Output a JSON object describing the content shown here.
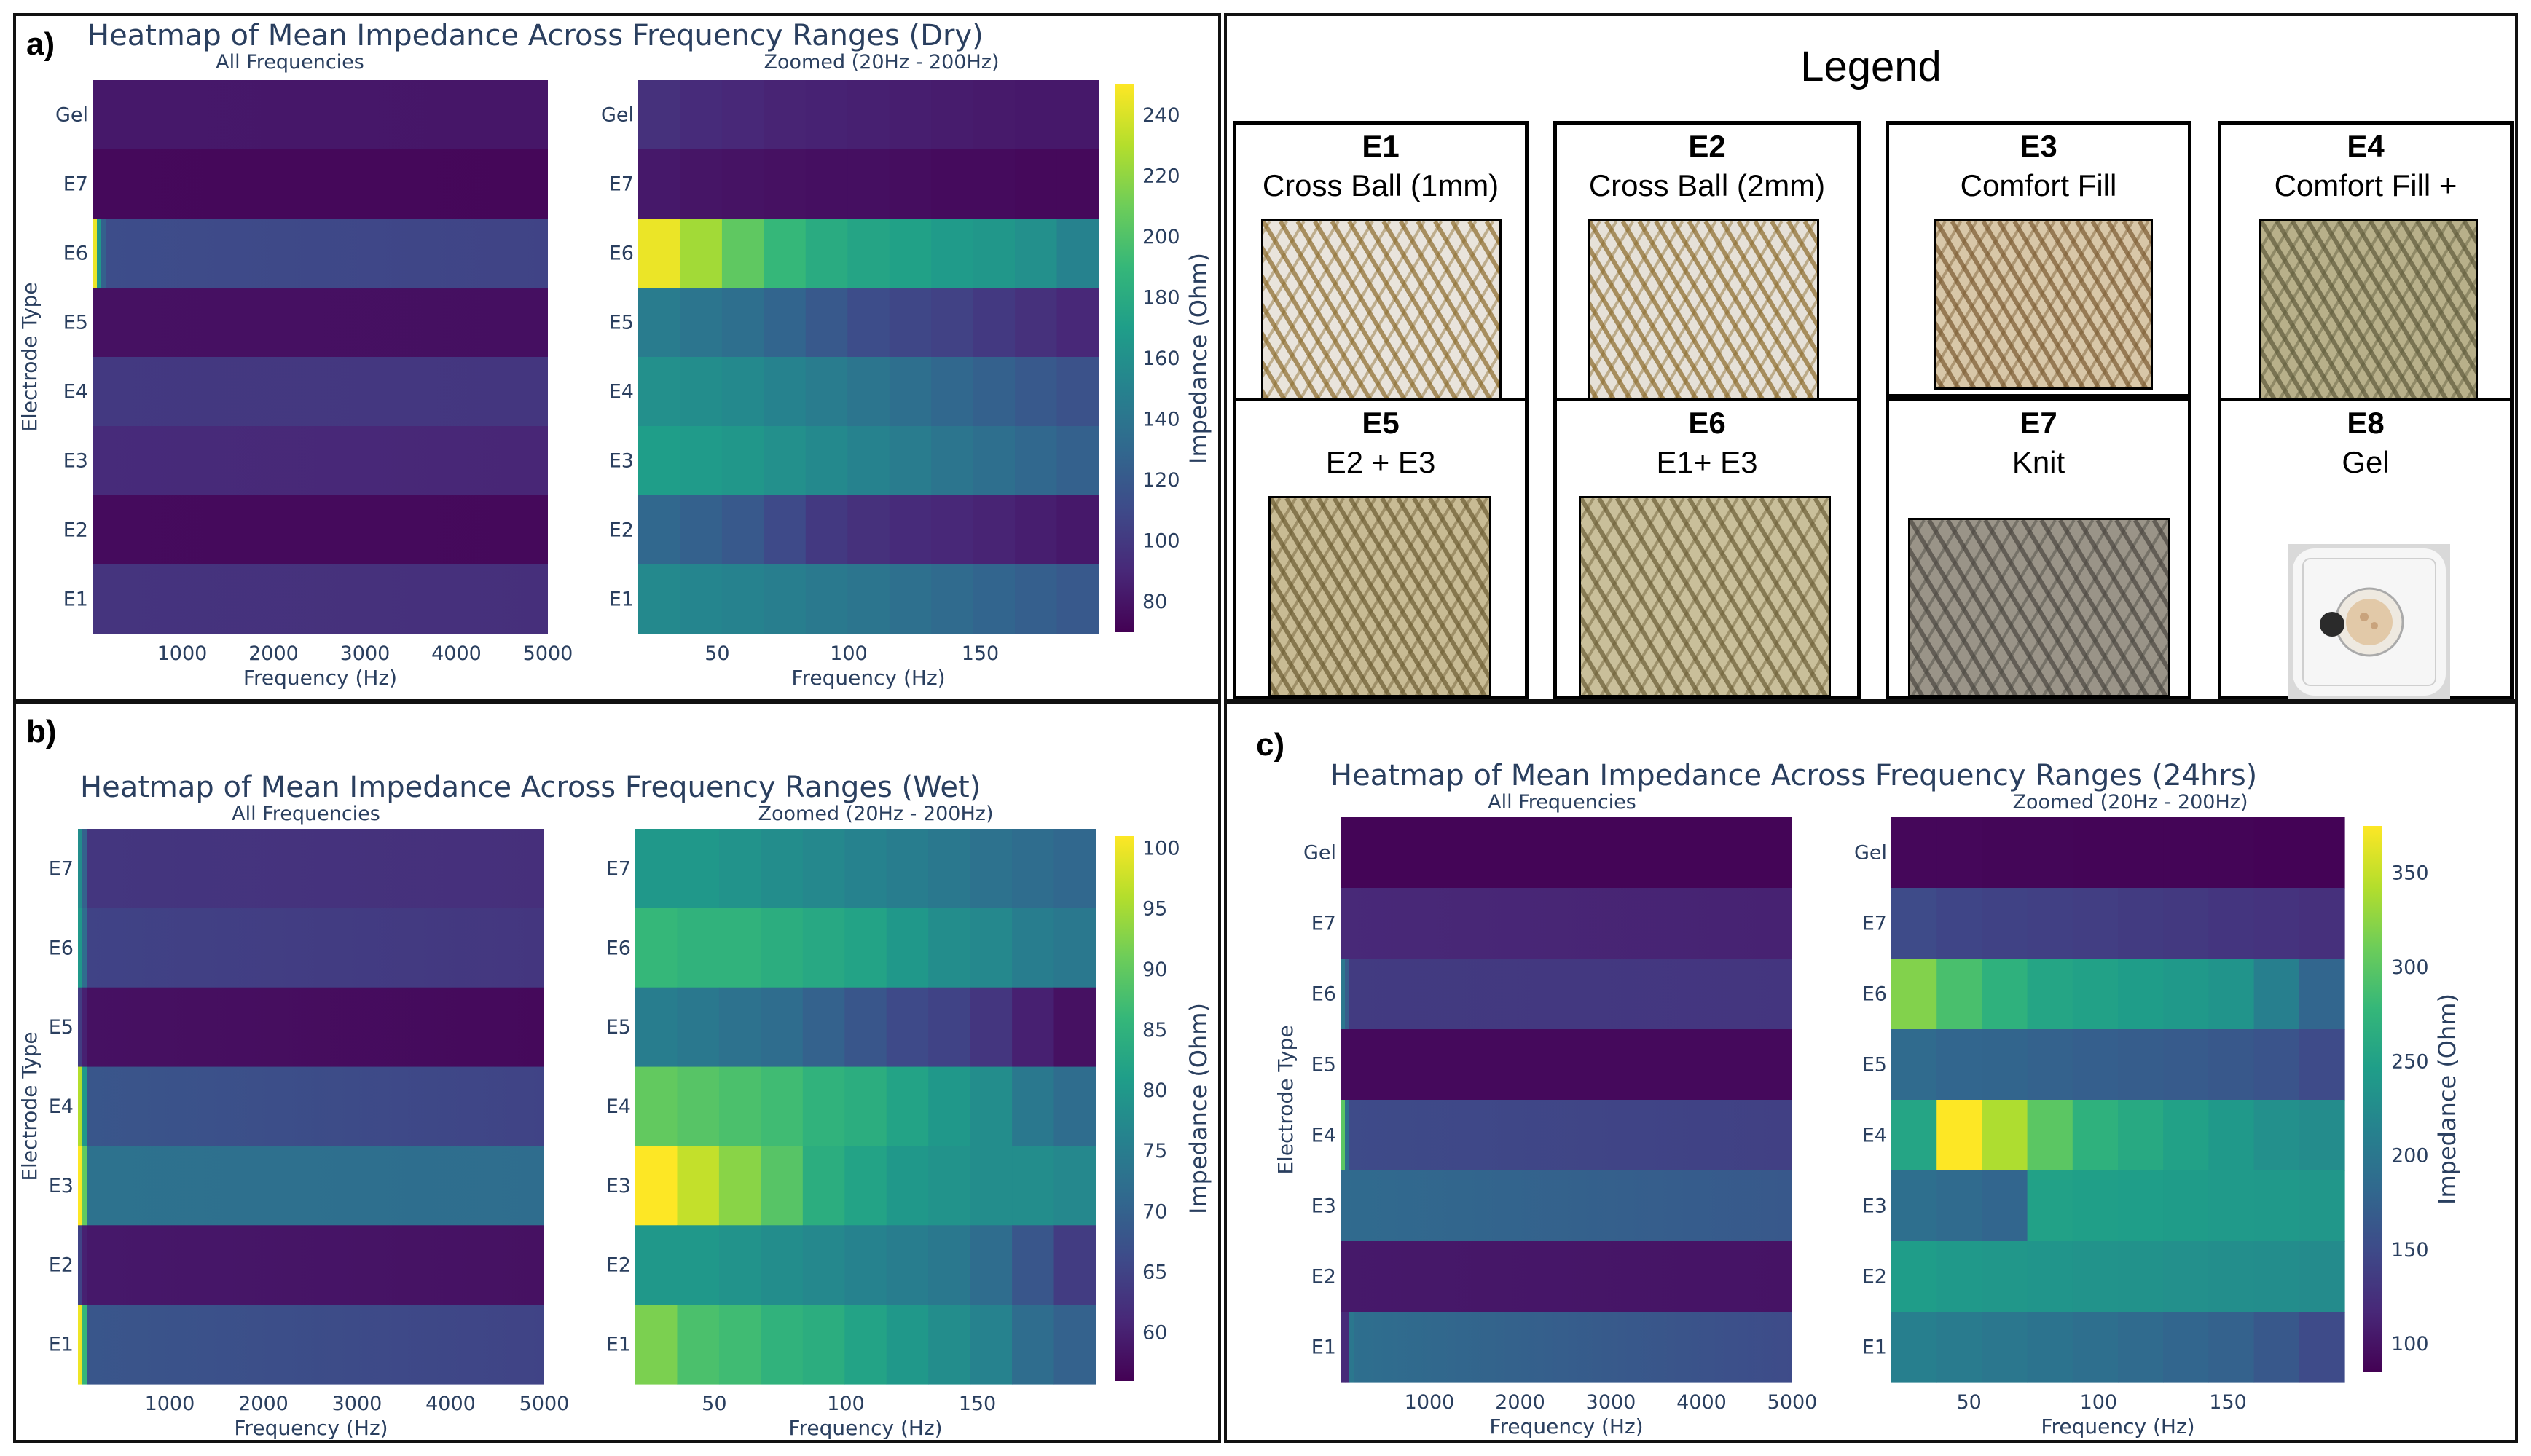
{
  "panels": {
    "a": {
      "label": "a)",
      "title": "Heatmap of Mean Impedance Across Frequency Ranges (Dry)"
    },
    "b": {
      "label": "b)",
      "title": "Heatmap of Mean Impedance Across Frequency Ranges (Wet)"
    },
    "c": {
      "label": "c)",
      "title": "Heatmap of Mean Impedance Across Frequency Ranges (24hrs)"
    }
  },
  "legend": {
    "title": "Legend",
    "cards": [
      {
        "id": "E1",
        "name": "Cross Ball (1mm)",
        "photo": "cross-ball-photo",
        "base": "#e9e4dc",
        "thread": "#8a6a2a"
      },
      {
        "id": "E2",
        "name": "Cross Ball (2mm)",
        "photo": "cross-ball-photo",
        "base": "#e6e1d8",
        "thread": "#8a6a2a"
      },
      {
        "id": "E3",
        "name": "Comfort Fill",
        "photo": "comfort-fill-photo",
        "base": "#d8c7a8",
        "thread": "#7a5a30"
      },
      {
        "id": "E4",
        "name": "Comfort Fill +",
        "photo": "comfort-fill-plus-photo",
        "base": "#b8b08a",
        "thread": "#5e5a3a"
      },
      {
        "id": "E5",
        "name": "E2 + E3",
        "photo": "e2-e3-photo",
        "base": "#c8bb94",
        "thread": "#6a5a30"
      },
      {
        "id": "E6",
        "name": "E1+ E3",
        "photo": "e1-e3-photo",
        "base": "#c9bf9a",
        "thread": "#6a5c34"
      },
      {
        "id": "E7",
        "name": "Knit",
        "photo": "knit-photo",
        "base": "#9a9488",
        "thread": "#4a4640"
      },
      {
        "id": "E8",
        "name": "Gel",
        "photo": "gel-photo",
        "base": "#eeeeee",
        "thread": "#999999"
      }
    ]
  },
  "chart_data": [
    {
      "type": "heatmap",
      "id": "a-all",
      "panel": "a",
      "subtitle": "All Frequencies",
      "xlabel": "Frequency (Hz)",
      "ylabel": "Electrode Type",
      "categories": [
        "Gel",
        "E7",
        "E6",
        "E5",
        "E4",
        "E3",
        "E2",
        "E1"
      ],
      "xlim": [
        20,
        5000
      ],
      "xticks": [
        1000,
        2000,
        3000,
        4000,
        5000
      ],
      "colorscale": "viridis",
      "zmin": 70,
      "zmax": 250,
      "colorbar": false,
      "rows": [
        {
          "label": "Gel",
          "first": [],
          "rest": [
            82,
            81
          ]
        },
        {
          "label": "E7",
          "first": [],
          "rest": [
            74,
            73
          ]
        },
        {
          "label": "E6",
          "first": [
            245,
            165,
            125
          ],
          "rest": [
            112,
            106
          ]
        },
        {
          "label": "E5",
          "first": [],
          "rest": [
            78,
            77
          ]
        },
        {
          "label": "E4",
          "first": [],
          "rest": [
            100,
            98
          ]
        },
        {
          "label": "E3",
          "first": [],
          "rest": [
            92,
            89
          ]
        },
        {
          "label": "E2",
          "first": [],
          "rest": [
            75,
            74
          ]
        },
        {
          "label": "E1",
          "first": [],
          "rest": [
            97,
            94
          ]
        }
      ]
    },
    {
      "type": "heatmap",
      "id": "a-zoom",
      "panel": "a",
      "subtitle": "Zoomed (20Hz - 200Hz)",
      "xlabel": "Frequency (Hz)",
      "categories": [
        "Gel",
        "E7",
        "E6",
        "E5",
        "E4",
        "E3",
        "E2",
        "E1"
      ],
      "xlim": [
        20,
        195
      ],
      "xticks": [
        50,
        100,
        150
      ],
      "colorscale": "viridis",
      "zmin": 70,
      "zmax": 250,
      "colorbar": true,
      "colorbar_title": "Impedance (Ohm)",
      "colorbar_ticks": [
        80,
        100,
        120,
        140,
        160,
        180,
        200,
        220,
        240
      ],
      "rows": [
        {
          "label": "Gel",
          "values": [
            95,
            92,
            90,
            88,
            87,
            86,
            85,
            84,
            83,
            82,
            82
          ]
        },
        {
          "label": "E7",
          "values": [
            82,
            80,
            79,
            78,
            77,
            77,
            76,
            75,
            75,
            74,
            74
          ]
        },
        {
          "label": "E6",
          "values": [
            245,
            225,
            205,
            190,
            180,
            175,
            172,
            168,
            165,
            160,
            150
          ]
        },
        {
          "label": "E5",
          "values": [
            145,
            140,
            135,
            128,
            120,
            112,
            108,
            105,
            100,
            95,
            90
          ]
        },
        {
          "label": "E4",
          "values": [
            160,
            158,
            155,
            150,
            145,
            140,
            135,
            130,
            125,
            120,
            115
          ]
        },
        {
          "label": "E3",
          "values": [
            170,
            168,
            165,
            160,
            155,
            150,
            145,
            140,
            135,
            130,
            125
          ]
        },
        {
          "label": "E2",
          "values": [
            130,
            125,
            120,
            110,
            100,
            95,
            92,
            90,
            88,
            85,
            82
          ]
        },
        {
          "label": "E1",
          "values": [
            155,
            152,
            150,
            147,
            143,
            140,
            136,
            132,
            128,
            124,
            120
          ]
        }
      ]
    },
    {
      "type": "heatmap",
      "id": "b-all",
      "panel": "b",
      "subtitle": "All Frequencies",
      "xlabel": "Frequency (Hz)",
      "ylabel": "Electrode Type",
      "categories": [
        "E7",
        "E6",
        "E5",
        "E4",
        "E3",
        "E2",
        "E1"
      ],
      "xlim": [
        20,
        5000
      ],
      "xticks": [
        1000,
        2000,
        3000,
        4000,
        5000
      ],
      "colorscale": "viridis",
      "zmin": 56,
      "zmax": 101,
      "colorbar": false,
      "rows": [
        {
          "label": "E7",
          "first": [
            78,
            70
          ],
          "rest": [
            63,
            62
          ]
        },
        {
          "label": "E6",
          "first": [
            80,
            72
          ],
          "rest": [
            65,
            63
          ]
        },
        {
          "label": "E5",
          "first": [
            64,
            60
          ],
          "rest": [
            58,
            57
          ]
        },
        {
          "label": "E4",
          "first": [
            96,
            80
          ],
          "rest": [
            68,
            65
          ]
        },
        {
          "label": "E3",
          "first": [
            101,
            90
          ],
          "rest": [
            73,
            72
          ]
        },
        {
          "label": "E2",
          "first": [
            65,
            60
          ],
          "rest": [
            59,
            58
          ]
        },
        {
          "label": "E1",
          "first": [
            100,
            86
          ],
          "rest": [
            68,
            65
          ]
        }
      ]
    },
    {
      "type": "heatmap",
      "id": "b-zoom",
      "panel": "b",
      "subtitle": "Zoomed (20Hz - 200Hz)",
      "xlabel": "Frequency (Hz)",
      "categories": [
        "E7",
        "E6",
        "E5",
        "E4",
        "E3",
        "E2",
        "E1"
      ],
      "xlim": [
        20,
        195
      ],
      "xticks": [
        50,
        100,
        150
      ],
      "colorscale": "viridis",
      "zmin": 56,
      "zmax": 101,
      "colorbar": true,
      "colorbar_title": "Impedance (Ohm)",
      "colorbar_ticks": [
        60,
        65,
        70,
        75,
        80,
        85,
        90,
        95,
        100
      ],
      "rows": [
        {
          "label": "E7",
          "values": [
            80,
            80,
            79,
            78,
            77,
            76,
            75,
            74,
            73,
            72,
            71
          ]
        },
        {
          "label": "E6",
          "values": [
            86,
            85,
            85,
            84,
            83,
            82,
            80,
            78,
            77,
            75,
            74
          ]
        },
        {
          "label": "E5",
          "values": [
            75,
            74,
            73,
            72,
            70,
            68,
            66,
            65,
            63,
            60,
            58
          ]
        },
        {
          "label": "E4",
          "values": [
            90,
            89,
            88,
            87,
            85,
            84,
            82,
            80,
            78,
            74,
            72
          ]
        },
        {
          "label": "E3",
          "values": [
            101,
            97,
            93,
            89,
            84,
            82,
            80,
            79,
            78,
            78,
            77
          ]
        },
        {
          "label": "E2",
          "values": [
            80,
            80,
            79,
            78,
            77,
            76,
            75,
            74,
            72,
            68,
            64
          ]
        },
        {
          "label": "E1",
          "values": [
            92,
            88,
            87,
            85,
            84,
            82,
            80,
            78,
            76,
            72,
            70
          ]
        }
      ]
    },
    {
      "type": "heatmap",
      "id": "c-all",
      "panel": "c",
      "subtitle": "All Frequencies",
      "xlabel": "Frequency (Hz)",
      "ylabel": "Electrode Type",
      "categories": [
        "Gel",
        "E7",
        "E6",
        "E5",
        "E4",
        "E3",
        "E2",
        "E1"
      ],
      "xlim": [
        20,
        5000
      ],
      "xticks": [
        1000,
        2000,
        3000,
        4000,
        5000
      ],
      "colorscale": "viridis",
      "zmin": 85,
      "zmax": 375,
      "colorbar": false,
      "rows": [
        {
          "label": "Gel",
          "first": [],
          "rest": [
            88,
            88
          ]
        },
        {
          "label": "E7",
          "first": [],
          "rest": [
            118,
            112
          ]
        },
        {
          "label": "E6",
          "first": [
            200,
            170
          ],
          "rest": [
            135,
            130
          ]
        },
        {
          "label": "E5",
          "first": [],
          "rest": [
            92,
            92
          ]
        },
        {
          "label": "E4",
          "first": [
            300,
            190
          ],
          "rest": [
            150,
            140
          ]
        },
        {
          "label": "E3",
          "first": [],
          "rest": [
            185,
            165
          ]
        },
        {
          "label": "E2",
          "first": [],
          "rest": [
            105,
            100
          ]
        },
        {
          "label": "E1",
          "first": [
            120,
            120,
            200
          ],
          "rest": [
            190,
            150
          ]
        }
      ]
    },
    {
      "type": "heatmap",
      "id": "c-zoom",
      "panel": "c",
      "subtitle": "Zoomed (20Hz - 200Hz)",
      "xlabel": "Frequency (Hz)",
      "categories": [
        "Gel",
        "E7",
        "E6",
        "E5",
        "E4",
        "E3",
        "E2",
        "E1"
      ],
      "xlim": [
        20,
        195
      ],
      "xticks": [
        50,
        100,
        150
      ],
      "colorscale": "viridis",
      "zmin": 85,
      "zmax": 375,
      "colorbar": true,
      "colorbar_title": "Impedance (Ohm)",
      "colorbar_ticks": [
        100,
        150,
        200,
        250,
        300,
        350
      ],
      "rows": [
        {
          "label": "Gel",
          "values": [
            90,
            90,
            89,
            89,
            88,
            88,
            88,
            88,
            87,
            87
          ]
        },
        {
          "label": "E7",
          "values": [
            150,
            145,
            142,
            140,
            138,
            135,
            133,
            130,
            128,
            125
          ]
        },
        {
          "label": "E6",
          "values": [
            320,
            290,
            270,
            255,
            250,
            245,
            240,
            235,
            210,
            180
          ]
        },
        {
          "label": "E5",
          "values": [
            185,
            180,
            178,
            175,
            172,
            170,
            168,
            165,
            160,
            150
          ]
        },
        {
          "label": "E4",
          "values": [
            255,
            375,
            340,
            300,
            270,
            260,
            250,
            240,
            230,
            225
          ]
        },
        {
          "label": "E3",
          "values": [
            190,
            185,
            180,
            250,
            248,
            246,
            244,
            242,
            240,
            238
          ]
        },
        {
          "label": "E2",
          "values": [
            245,
            240,
            238,
            236,
            234,
            232,
            230,
            228,
            226,
            224
          ]
        },
        {
          "label": "E1",
          "values": [
            210,
            205,
            200,
            195,
            190,
            185,
            180,
            175,
            165,
            150
          ]
        }
      ]
    }
  ]
}
